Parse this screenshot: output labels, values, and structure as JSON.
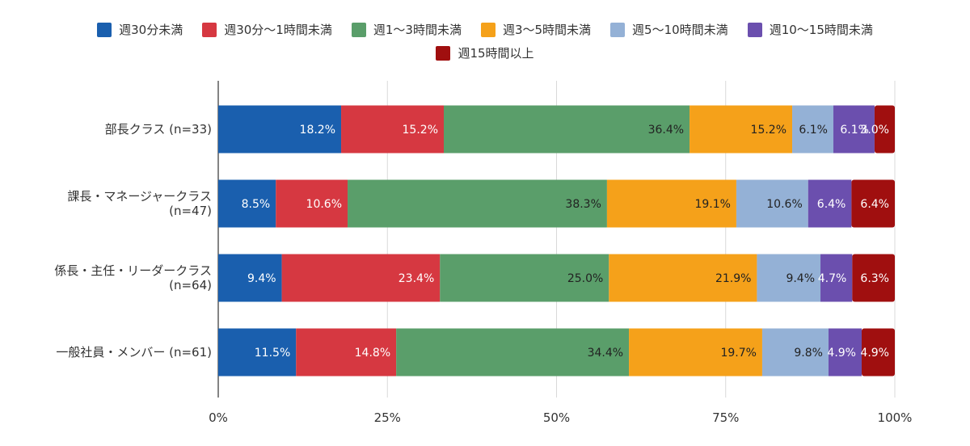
{
  "chart_data": {
    "type": "bar",
    "orientation": "horizontal",
    "stacked": "percent",
    "categories": [
      [
        "部長クラス (n=33)"
      ],
      [
        "課長・マネージャークラス",
        "(n=47)"
      ],
      [
        "係長・主任・リーダークラス",
        "(n=64)"
      ],
      [
        "一般社員・メンバー (n=61)"
      ]
    ],
    "series": [
      {
        "name": "週30分未満",
        "color": "#1a5fae",
        "values": [
          18.2,
          8.5,
          9.4,
          11.5
        ],
        "labels": [
          "18.2%",
          "8.5%",
          "9.4%",
          "11.5%"
        ],
        "label_color": "#ffffff"
      },
      {
        "name": "週30分〜1時間未満",
        "color": "#d63841",
        "values": [
          15.2,
          10.6,
          23.4,
          14.8
        ],
        "labels": [
          "15.2%",
          "10.6%",
          "23.4%",
          "14.8%"
        ],
        "label_color": "#ffffff"
      },
      {
        "name": "週1〜3時間未満",
        "color": "#5a9e6a",
        "values": [
          36.4,
          38.3,
          25.0,
          34.4
        ],
        "labels": [
          "36.4%",
          "38.3%",
          "25.0%",
          "34.4%"
        ],
        "label_color": "#222222"
      },
      {
        "name": "週3〜5時間未満",
        "color": "#f5a11a",
        "values": [
          15.2,
          19.1,
          21.9,
          19.7
        ],
        "labels": [
          "15.2%",
          "19.1%",
          "21.9%",
          "19.7%"
        ],
        "label_color": "#222222"
      },
      {
        "name": "週5〜10時間未満",
        "color": "#94b1d6",
        "values": [
          6.1,
          10.6,
          9.4,
          9.8
        ],
        "labels": [
          "6.1%",
          "10.6%",
          "9.4%",
          "9.8%"
        ],
        "label_color": "#222222"
      },
      {
        "name": "週10〜15時間未満",
        "color": "#6b4fae",
        "values": [
          6.1,
          6.4,
          4.7,
          4.9
        ],
        "labels": [
          "6.1%",
          "6.4%",
          "4.7%",
          "4.9%"
        ],
        "label_color": "#ffffff"
      },
      {
        "name": "週15時間以上",
        "color": "#a00f0f",
        "values": [
          3.0,
          6.4,
          6.3,
          4.9
        ],
        "labels": [
          "3.0%",
          "6.4%",
          "6.3%",
          "4.9%"
        ],
        "label_color": "#ffffff"
      }
    ],
    "xlim": [
      0,
      100
    ],
    "xticks": [
      "0%",
      "25%",
      "50%",
      "75%",
      "100%"
    ],
    "grid": true,
    "legend_position": "top"
  }
}
